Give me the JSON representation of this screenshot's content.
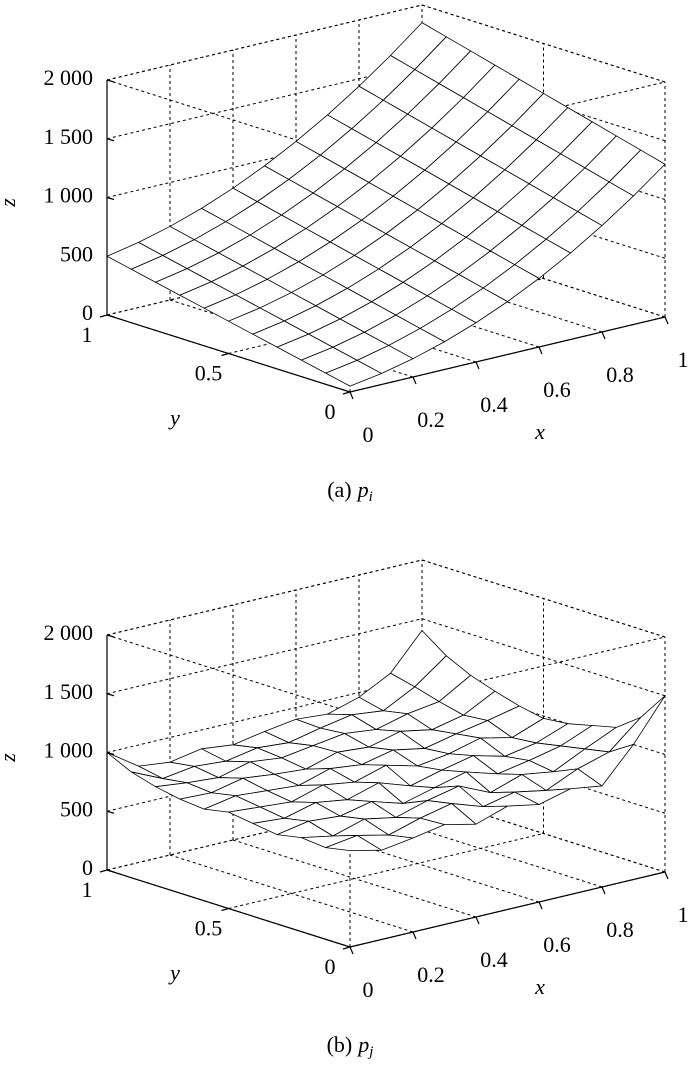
{
  "chart_data": [
    {
      "type": "surface",
      "color": "#000000",
      "grid": true,
      "xlabel": "x",
      "ylabel": "y",
      "zlabel": "z",
      "caption": "(a)",
      "caption_var": "p",
      "caption_sub": "i",
      "x": [
        0,
        0.1,
        0.2,
        0.3,
        0.4,
        0.5,
        0.6,
        0.7,
        0.8,
        0.9,
        1
      ],
      "y": [
        0,
        0.1,
        0.2,
        0.3,
        0.4,
        0.5,
        0.6,
        0.7,
        0.8,
        0.9,
        1
      ],
      "z": [
        [
          50,
          94,
          156,
          236,
          334,
          450,
          584,
          736,
          906,
          1094,
          1300
        ],
        [
          95,
          140,
          203,
          284,
          383,
          500,
          635,
          788,
          959,
          1148,
          1355
        ],
        [
          140,
          186,
          250,
          332,
          432,
          550,
          686,
          840,
          1012,
          1202,
          1410
        ],
        [
          185,
          232,
          297,
          380,
          481,
          600,
          737,
          892,
          1065,
          1256,
          1465
        ],
        [
          230,
          278,
          344,
          428,
          530,
          650,
          788,
          944,
          1118,
          1310,
          1520
        ],
        [
          275,
          324,
          391,
          476,
          579,
          700,
          839,
          996,
          1171,
          1364,
          1575
        ],
        [
          320,
          370,
          438,
          524,
          628,
          750,
          890,
          1048,
          1224,
          1418,
          1630
        ],
        [
          365,
          416,
          485,
          572,
          677,
          800,
          941,
          1100,
          1277,
          1472,
          1685
        ],
        [
          410,
          462,
          532,
          620,
          726,
          850,
          992,
          1152,
          1330,
          1526,
          1740
        ],
        [
          455,
          508,
          579,
          668,
          775,
          900,
          1043,
          1204,
          1383,
          1580,
          1795
        ],
        [
          500,
          554,
          626,
          716,
          824,
          950,
          1094,
          1256,
          1436,
          1634,
          1850
        ]
      ],
      "xlim": [
        0,
        1
      ],
      "ylim": [
        0,
        1
      ],
      "zlim": [
        0,
        2000
      ],
      "xticks": [
        0,
        0.2,
        0.4,
        0.6,
        0.8,
        1
      ],
      "yticks": [
        0,
        0.5,
        1
      ],
      "zticks": [
        0,
        500,
        {
          "value": 1000,
          "label": "1 000"
        },
        {
          "value": 1500,
          "label": "1 500"
        },
        {
          "value": 2000,
          "label": "2 000"
        }
      ]
    },
    {
      "type": "surface",
      "color": "#000000",
      "grid": true,
      "xlabel": "x",
      "ylabel": "y",
      "zlabel": "z",
      "caption": "(b)",
      "caption_var": "p",
      "caption_sub": "j",
      "x": [
        0,
        0.1,
        0.2,
        0.3,
        0.4,
        0.5,
        0.6,
        0.7,
        0.8,
        0.9,
        1
      ],
      "y": [
        0,
        0.1,
        0.2,
        0.3,
        0.4,
        0.5,
        0.6,
        0.7,
        0.8,
        0.9,
        1
      ],
      "z": [
        [
          820,
          760,
          800,
          850,
          790,
          880,
          830,
          900,
          860,
          1150,
          1500
        ],
        [
          780,
          820,
          760,
          840,
          900,
          810,
          870,
          820,
          940,
          1020,
          1250
        ],
        [
          800,
          750,
          830,
          780,
          860,
          920,
          800,
          890,
          850,
          980,
          1100
        ],
        [
          760,
          810,
          790,
          850,
          770,
          840,
          910,
          830,
          880,
          940,
          1050
        ],
        [
          790,
          770,
          840,
          800,
          880,
          790,
          860,
          920,
          850,
          900,
          1000
        ],
        [
          820,
          800,
          780,
          860,
          820,
          900,
          830,
          870,
          940,
          880,
          980
        ],
        [
          780,
          830,
          810,
          790,
          870,
          840,
          900,
          850,
          910,
          960,
          1020
        ],
        [
          800,
          790,
          850,
          820,
          800,
          880,
          860,
          930,
          880,
          940,
          1080
        ],
        [
          840,
          810,
          790,
          860,
          830,
          870,
          910,
          880,
          950,
          990,
          1150
        ],
        [
          900,
          780,
          820,
          800,
          850,
          830,
          890,
          940,
          910,
          1050,
          1250
        ],
        [
          1000,
          820,
          790,
          840,
          810,
          860,
          900,
          880,
          960,
          1100,
          1400
        ]
      ],
      "xlim": [
        0,
        1
      ],
      "ylim": [
        0,
        1
      ],
      "zlim": [
        0,
        2000
      ],
      "xticks": [
        0,
        0.2,
        0.4,
        0.6,
        0.8,
        1
      ],
      "yticks": [
        0,
        0.5,
        1
      ],
      "zticks": [
        0,
        500,
        {
          "value": 1000,
          "label": "1 000"
        },
        {
          "value": 1500,
          "label": "1 500"
        },
        {
          "value": 2000,
          "label": "2 000"
        }
      ]
    }
  ]
}
